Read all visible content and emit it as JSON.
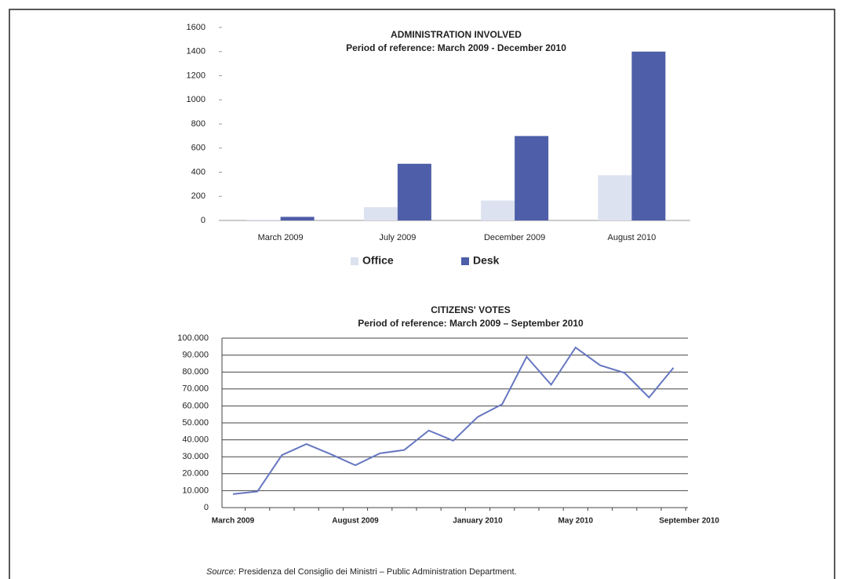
{
  "chart_data": [
    {
      "type": "bar",
      "title": "ADMINISTRATION INVOLVED",
      "subtitle": "Period of reference: March 2009 - December 2010",
      "categories": [
        "March 2009",
        "July 2009",
        "December 2009",
        "August 2010"
      ],
      "series": [
        {
          "name": "Office",
          "color": "#dce2f0",
          "values": [
            5,
            110,
            165,
            375
          ]
        },
        {
          "name": "Desk",
          "color": "#4e5ea8",
          "values": [
            30,
            470,
            700,
            1400
          ]
        }
      ],
      "ylim": [
        0,
        1600
      ],
      "yticks": [
        0,
        200,
        400,
        600,
        800,
        1000,
        1200,
        1400,
        1600
      ],
      "grid": false,
      "legend": "bottom"
    },
    {
      "type": "line",
      "title": "CITIZENS' VOTES",
      "subtitle": "Period of reference: March 2009 – September 2010",
      "categories": [
        "March 2009",
        null,
        null,
        null,
        null,
        "August 2009",
        null,
        null,
        null,
        null,
        "January 2010",
        null,
        null,
        null,
        "May 2010",
        null,
        null,
        null,
        "September 2010"
      ],
      "series": [
        {
          "name": "Votes",
          "color": "#6676c0",
          "values": [
            8000,
            9500,
            31000,
            37500,
            31500,
            25000,
            32000,
            34000,
            45500,
            39500,
            53500,
            61000,
            89000,
            72500,
            94500,
            84000,
            79500,
            65000,
            82500
          ]
        }
      ],
      "ylim": [
        0,
        100000
      ],
      "yticks": [
        0,
        {
          "value": 10000,
          "label": "10.000"
        },
        {
          "value": 20000,
          "label": "20.000"
        },
        {
          "value": 30000,
          "label": "30.000"
        },
        {
          "value": 40000,
          "label": "40.000"
        },
        {
          "value": 50000,
          "label": "50.000"
        },
        {
          "value": 60000,
          "label": "60.000"
        },
        {
          "value": 70000,
          "label": "70.000"
        },
        {
          "value": 80000,
          "label": "80.000"
        },
        {
          "value": 90000,
          "label": "90.000"
        },
        {
          "value": 100000,
          "label": "100.000"
        }
      ],
      "grid": true
    }
  ],
  "source": {
    "label": "Source:",
    "text": "Presidenza del Consiglio dei Ministri – Public Administration Department."
  }
}
